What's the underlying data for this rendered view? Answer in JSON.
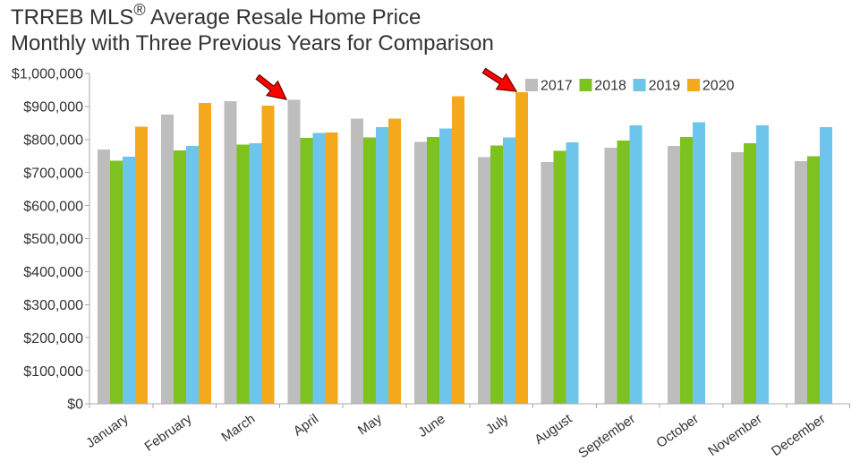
{
  "chart_data": {
    "type": "bar",
    "title": "TRREB MLS® Average Resale Home Price",
    "subtitle": "Monthly with Three Previous Years for Comparison",
    "categories": [
      "January",
      "February",
      "March",
      "April",
      "May",
      "June",
      "July",
      "August",
      "September",
      "October",
      "November",
      "December"
    ],
    "series": [
      {
        "name": "2017",
        "color": "#BDBDBD",
        "values": [
          770000,
          876000,
          916000,
          920000,
          863000,
          793000,
          746000,
          732000,
          775000,
          780000,
          762000,
          735000
        ]
      },
      {
        "name": "2018",
        "color": "#7DC21E",
        "values": [
          736000,
          767000,
          784000,
          805000,
          806000,
          808000,
          782000,
          765000,
          797000,
          807000,
          788000,
          750000
        ]
      },
      {
        "name": "2019",
        "color": "#6EC5EC",
        "values": [
          748000,
          780000,
          788000,
          820000,
          838000,
          833000,
          806000,
          792000,
          843000,
          852000,
          843000,
          838000
        ]
      },
      {
        "name": "2020",
        "color": "#F4A81C",
        "values": [
          839000,
          910000,
          903000,
          821000,
          863000,
          931000,
          943000,
          null,
          null,
          null,
          null,
          null
        ]
      }
    ],
    "ylim": [
      0,
      1000000
    ],
    "yticks": [
      0,
      100000,
      200000,
      300000,
      400000,
      500000,
      600000,
      700000,
      800000,
      900000,
      1000000
    ],
    "ytick_labels": [
      "$0",
      "$100,000",
      "$200,000",
      "$300,000",
      "$400,000",
      "$500,000",
      "$600,000",
      "$700,000",
      "$800,000",
      "$900,000",
      "$1,000,000"
    ],
    "grid": false,
    "legend_position": "top-right",
    "annotation_color": "#FF0000"
  }
}
